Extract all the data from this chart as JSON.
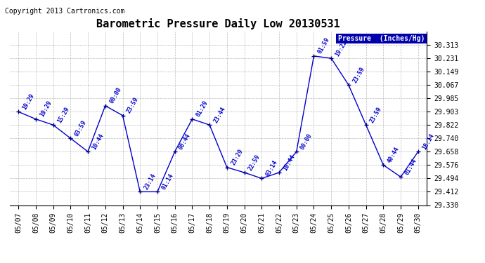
{
  "title": "Barometric Pressure Daily Low 20130531",
  "copyright": "Copyright 2013 Cartronics.com",
  "legend_label": "Pressure  (Inches/Hg)",
  "background_color": "#ffffff",
  "plot_bg_color": "#ffffff",
  "line_color": "#0000cc",
  "marker_color": "#000080",
  "label_color": "#0000cc",
  "ylim_min": 29.33,
  "ylim_max": 30.395,
  "yticks": [
    29.33,
    29.412,
    29.494,
    29.576,
    29.658,
    29.74,
    29.822,
    29.903,
    29.985,
    30.067,
    30.149,
    30.231,
    30.313
  ],
  "dates": [
    "05/07",
    "05/08",
    "05/09",
    "05/10",
    "05/11",
    "05/12",
    "05/13",
    "05/14",
    "05/15",
    "05/16",
    "05/17",
    "05/18",
    "05/19",
    "05/20",
    "05/21",
    "05/22",
    "05/23",
    "05/24",
    "05/25",
    "05/26",
    "05/27",
    "05/28",
    "05/29",
    "05/30"
  ],
  "x_indices": [
    0,
    1,
    2,
    3,
    4,
    5,
    6,
    7,
    8,
    9,
    10,
    11,
    12,
    13,
    14,
    15,
    16,
    17,
    18,
    19,
    20,
    21,
    22,
    23
  ],
  "values": [
    29.903,
    29.858,
    29.822,
    29.74,
    29.658,
    29.94,
    29.88,
    29.412,
    29.412,
    29.658,
    29.858,
    29.822,
    29.562,
    29.53,
    29.494,
    29.53,
    29.658,
    30.245,
    30.231,
    30.067,
    29.822,
    29.576,
    29.503,
    29.658
  ],
  "point_labels": [
    "19:29",
    "19:29",
    "15:29",
    "03:59",
    "10:44",
    "00:00",
    "23:59",
    "23:14",
    "01:14",
    "00:44",
    "01:29",
    "23:44",
    "23:29",
    "22:59",
    "03:14",
    "10:44",
    "00:00",
    "01:59",
    "19:22",
    "23:59",
    "23:59",
    "40:44",
    "01:44",
    "18:14"
  ],
  "title_fontsize": 11,
  "tick_fontsize": 7,
  "label_fontsize": 6,
  "copyright_fontsize": 7,
  "legend_fontsize": 7
}
